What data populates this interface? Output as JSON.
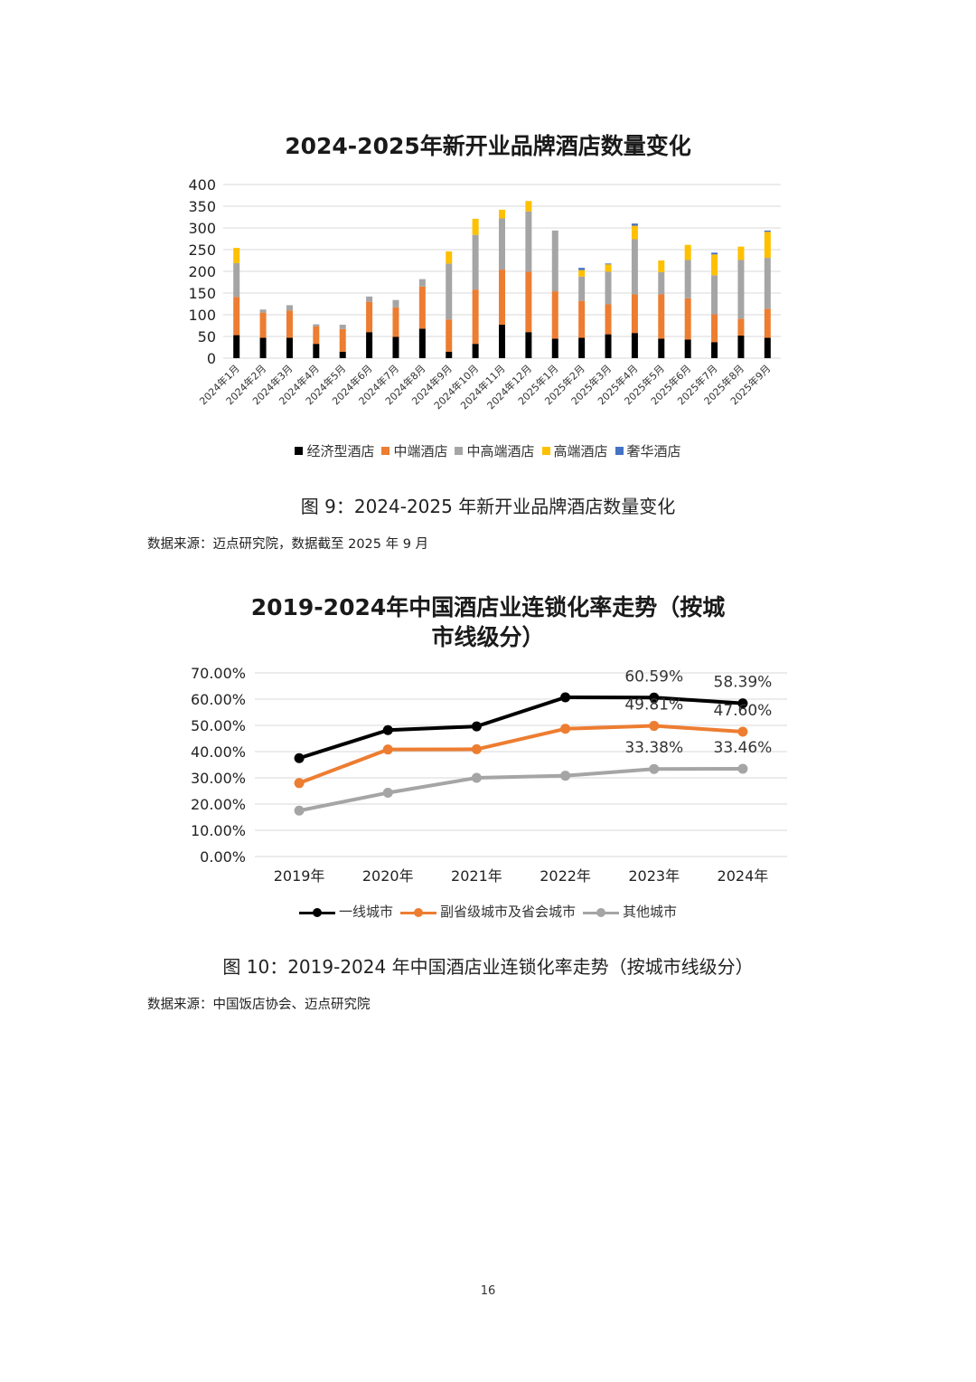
{
  "chart_data": [
    {
      "type": "bar",
      "stacked": true,
      "title": "2024-2025年新开业品牌酒店数量变化",
      "ylim": [
        0,
        400
      ],
      "yticks": [
        0,
        50,
        100,
        150,
        200,
        250,
        300,
        350,
        400
      ],
      "grid": true,
      "legend_position": "bottom",
      "categories": [
        "2024年1月",
        "2024年2月",
        "2024年3月",
        "2024年4月",
        "2024年5月",
        "2024年6月",
        "2024年7月",
        "2024年8月",
        "2024年9月",
        "2024年10月",
        "2024年11月",
        "2024年12月",
        "2025年1月",
        "2025年2月",
        "2025年3月",
        "2025年4月",
        "2025年5月",
        "2025年6月",
        "2025年7月",
        "2025年8月",
        "2025年9月"
      ],
      "series": [
        {
          "name": "经济型酒店",
          "color": "#000000",
          "values": [
            53,
            47,
            47,
            33,
            15,
            60,
            49,
            68,
            15,
            33,
            77,
            60,
            45,
            47,
            55,
            58,
            45,
            43,
            37,
            52,
            47
          ]
        },
        {
          "name": "中端酒店",
          "color": "#ED7D31",
          "values": [
            88,
            58,
            63,
            40,
            52,
            70,
            68,
            97,
            74,
            125,
            127,
            139,
            109,
            85,
            69,
            89,
            102,
            95,
            64,
            39,
            67
          ]
        },
        {
          "name": "中高端酒店",
          "color": "#A5A5A5",
          "values": [
            78,
            7,
            12,
            5,
            10,
            12,
            17,
            17,
            129,
            126,
            118,
            139,
            140,
            56,
            75,
            127,
            51,
            88,
            90,
            135,
            117
          ]
        },
        {
          "name": "高端酒店",
          "color": "#FFC000",
          "values": [
            35,
            0,
            0,
            0,
            0,
            0,
            0,
            0,
            28,
            37,
            20,
            24,
            0,
            15,
            17,
            31,
            27,
            35,
            48,
            31,
            60
          ]
        },
        {
          "name": "奢华酒店",
          "color": "#4472C4",
          "values": [
            0,
            0,
            0,
            0,
            0,
            0,
            0,
            0,
            0,
            0,
            0,
            0,
            0,
            5,
            2,
            5,
            0,
            0,
            4,
            0,
            3
          ]
        }
      ]
    },
    {
      "type": "line",
      "title": "2019-2024年中国酒店业连锁化率走势（按城市线级分）",
      "title_line1": "2019-2024年中国酒店业连锁化率走势（按城",
      "title_line2": "市线级分）",
      "x": [
        "2019年",
        "2020年",
        "2021年",
        "2022年",
        "2023年",
        "2024年"
      ],
      "ylim": [
        0,
        70
      ],
      "yticks": [
        "0.00%",
        "10.00%",
        "20.00%",
        "30.00%",
        "40.00%",
        "50.00%",
        "60.00%",
        "70.00%"
      ],
      "grid": true,
      "legend_position": "bottom",
      "series": [
        {
          "name": "一线城市",
          "color": "#000000",
          "values": [
            37.5,
            48.2,
            49.6,
            60.7,
            60.59,
            58.39
          ],
          "labels": [
            "",
            "",
            "",
            "",
            "60.59%",
            "58.39%"
          ]
        },
        {
          "name": "副省级城市及省会城市",
          "color": "#ED7D31",
          "values": [
            28.0,
            40.8,
            40.9,
            48.7,
            49.81,
            47.6
          ],
          "labels": [
            "",
            "",
            "",
            "",
            "49.81%",
            "47.60%"
          ]
        },
        {
          "name": "其他城市",
          "color": "#A5A5A5",
          "values": [
            17.5,
            24.3,
            30.0,
            30.8,
            33.38,
            33.46
          ],
          "labels": [
            "",
            "",
            "",
            "",
            "33.38%",
            "33.46%"
          ]
        }
      ]
    }
  ],
  "captions": {
    "fig9": "图 9：2024-2025 年新开业品牌酒店数量变化",
    "fig9_source": "数据来源：迈点研究院，数据截至 2025 年 9 月",
    "fig10": "图 10：2019-2024 年中国酒店业连锁化率走势（按城市线级分）",
    "fig10_source": "数据来源：中国饭店协会、迈点研究院"
  },
  "page_number": "16"
}
